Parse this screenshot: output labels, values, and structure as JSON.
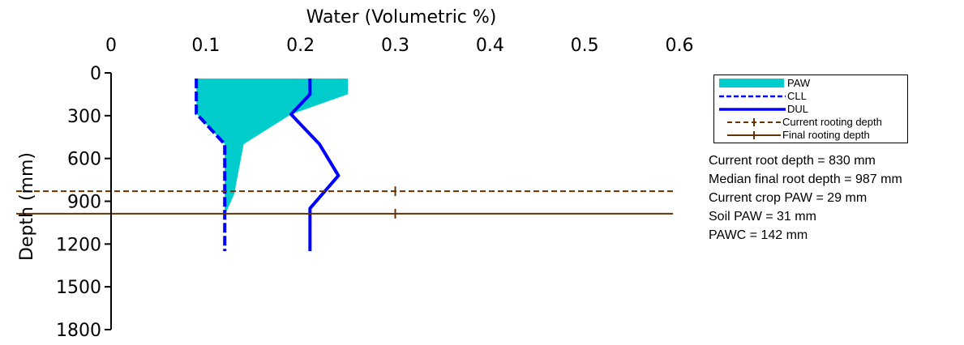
{
  "chart_data": {
    "type": "line",
    "title": "",
    "xlabel": "Water (Volumetric %)",
    "ylabel": "Depth (mm)",
    "xlim": [
      0,
      0.6
    ],
    "ylim": [
      0,
      1800
    ],
    "y_inverted": true,
    "x_axis_position": "top",
    "x_ticks": [
      "0",
      "0.1",
      "0.2",
      "0.3",
      "0.4",
      "0.5",
      "0.6"
    ],
    "y_ticks": [
      "0",
      "300",
      "600",
      "900",
      "1200",
      "1500",
      "1800"
    ],
    "grid": false,
    "series": [
      {
        "name": "CLL",
        "style": "dashed",
        "color": "#0000ff",
        "points": [
          [
            0.09,
            40
          ],
          [
            0.09,
            150
          ],
          [
            0.09,
            285
          ],
          [
            0.12,
            500
          ],
          [
            0.12,
            1000
          ],
          [
            0.12,
            1250
          ]
        ]
      },
      {
        "name": "DUL",
        "style": "solid",
        "color": "#0000ff",
        "points": [
          [
            0.21,
            40
          ],
          [
            0.21,
            150
          ],
          [
            0.19,
            290
          ],
          [
            0.22,
            500
          ],
          [
            0.24,
            720
          ],
          [
            0.21,
            950
          ],
          [
            0.21,
            1250
          ]
        ]
      },
      {
        "name": "PAW",
        "style": "fill",
        "color": "#00cccc",
        "upper": [
          [
            0.25,
            40
          ],
          [
            0.25,
            150
          ],
          [
            0.19,
            290
          ],
          [
            0.14,
            500
          ],
          [
            0.13,
            850
          ],
          [
            0.12,
            1000
          ]
        ],
        "lower": [
          [
            0.09,
            40
          ],
          [
            0.09,
            150
          ],
          [
            0.09,
            285
          ],
          [
            0.12,
            500
          ],
          [
            0.12,
            1000
          ]
        ]
      },
      {
        "name": "Current rooting depth",
        "style": "dashed",
        "color": "#663300",
        "depth": 830,
        "marker_x": 0.3
      },
      {
        "name": "Final rooting depth",
        "style": "solid",
        "color": "#663300",
        "depth": 987,
        "marker_x": 0.3
      }
    ],
    "legend_placement": "right",
    "legend": [
      "PAW",
      "CLL",
      "DUL",
      "Current rooting depth",
      "Final rooting depth"
    ]
  },
  "stats": [
    "Current root depth = 830 mm",
    "Median final root depth = 987 mm",
    "Current crop PAW = 29 mm",
    "Soil PAW = 31 mm",
    "PAWC = 142 mm"
  ]
}
